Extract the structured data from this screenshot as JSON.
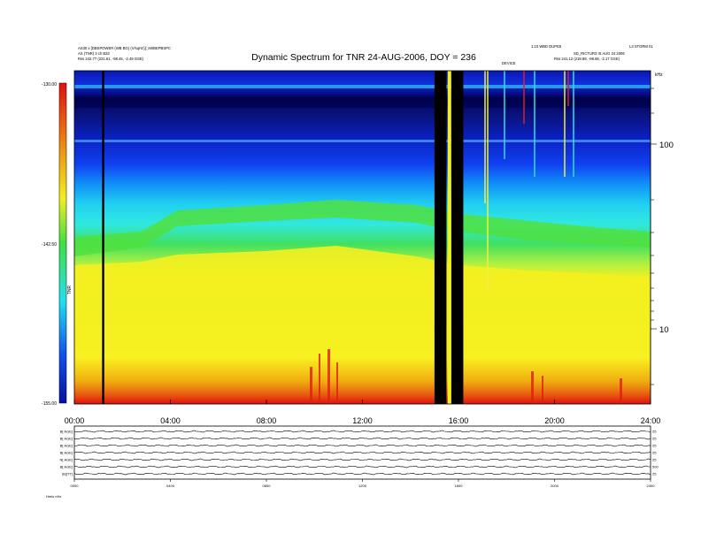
{
  "chart_data": {
    "type": "heatmap",
    "title": "Dynamic Spectrum for TNR 24-AUG-2006, DOY = 236",
    "header_left": [
      "AS30 x [DBSPOWER (WB BG) (V/sqHz)]; xWBEPBSPC",
      "AS (TNR) 3 ch B32",
      "Rss  242.77 (221.61, -98.45, -2.49 GSE)"
    ],
    "header_right_a": "1:10 WBD DUPE5",
    "header_right_b": "L3 STORM 01",
    "header_right_c": "SD_RICTUR3 IS AUG 24 2006",
    "header_right_d": "Rss  241.12 (218.89, -99.88, -2.17 GSE)",
    "marker_label": "DEVICE",
    "x_ticks": [
      "00:00",
      "04:00",
      "08:00",
      "12:00",
      "16:00",
      "20:00",
      "24:00"
    ],
    "xlim": [
      0,
      24
    ],
    "y_ticks_right": [
      "100",
      "10"
    ],
    "y_unit_label": "kHz",
    "colorbar": {
      "ticks": [
        "-130.00",
        "-142.50",
        "-155.00"
      ],
      "label": "TNR",
      "range": [
        -155,
        -130
      ]
    },
    "gaps_hours": [
      [
        15.0,
        15.5
      ],
      [
        15.7,
        16.2
      ]
    ],
    "vertical_lines_hours": [
      1.2
    ],
    "panels": [
      {
        "label": "B[ AGE]",
        "right": [
          "25",
          "0"
        ]
      },
      {
        "label": "B[ AGE]",
        "right": [
          "25",
          "0"
        ]
      },
      {
        "label": "B[ AGE]",
        "right": [
          "25",
          "0"
        ]
      },
      {
        "label": "B[ AGE]",
        "right": [
          "25",
          "0"
        ]
      },
      {
        "label": "N[ AGE]",
        "right": [
          "25",
          "0"
        ]
      },
      {
        "label": "B[ AGE]",
        "right": [
          "500",
          "0"
        ]
      },
      {
        "label": "|B|[TT]",
        "right": [
          "25",
          "0"
        ]
      }
    ],
    "bottom_x_ticks": [
      "0000",
      "0400",
      "0800",
      "1200",
      "1600",
      "2000",
      "2400"
    ],
    "bottom_left_label": "Hmis  nHz"
  },
  "palette": {
    "red": "#e01010",
    "orange": "#f08010",
    "yellow": "#f0f020",
    "green": "#30d040",
    "cyan": "#20e0f0",
    "blue": "#1050f0",
    "darkblue": "#0810a0",
    "black": "#000000"
  }
}
